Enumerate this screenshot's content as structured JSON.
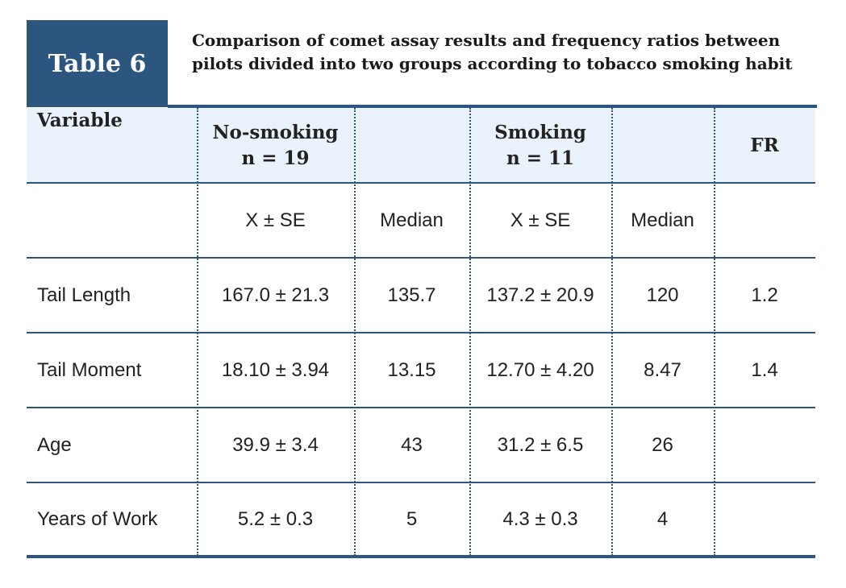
{
  "header": {
    "label": "Table 6",
    "title": "Comparison of comet assay results and frequency ratios between pilots divided into two groups according to tobacco smoking habit"
  },
  "table": {
    "columns": [
      {
        "label": "Variable"
      },
      {
        "label": "No-smoking",
        "sublabel": "n = 19"
      },
      null,
      {
        "label": "Smoking",
        "sublabel": "n = 11"
      },
      null,
      {
        "label": "FR"
      }
    ],
    "subheader": [
      null,
      "X ± SE",
      "Median",
      "X ± SE",
      "Median",
      null
    ],
    "rows": [
      [
        "Tail Length",
        "167.0 ± 21.3",
        "135.7",
        "137.2 ± 20.9",
        "120",
        "1.2"
      ],
      [
        "Tail Moment",
        "18.10 ± 3.94",
        "13.15",
        "12.70 ± 4.20",
        "8.47",
        "1.4"
      ],
      [
        "Age",
        "39.9 ± 3.4",
        "43",
        "31.2 ± 6.5",
        "26",
        null
      ],
      [
        "Years of Work",
        "5.2 ± 0.3",
        "5",
        "4.3 ± 0.3",
        "4",
        null
      ]
    ]
  }
}
